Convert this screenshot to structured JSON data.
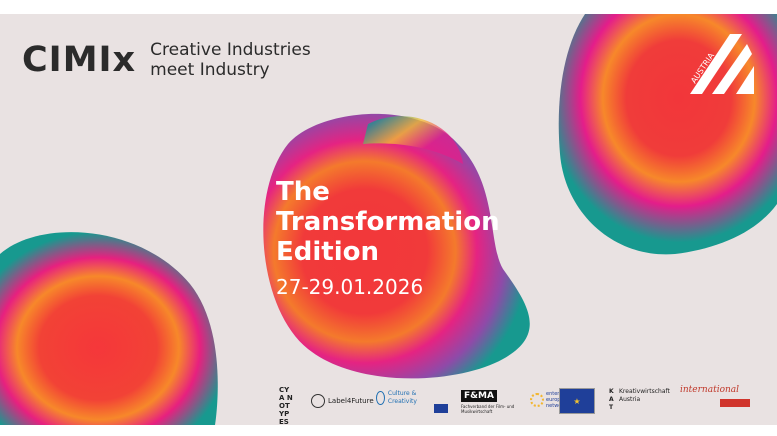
{
  "brand": {
    "mark": "CIMIx",
    "tagline_line1": "Creative Industries",
    "tagline_line2": "meet Industry"
  },
  "headline": {
    "line1": "The",
    "line2": "Transformation",
    "line3": "Edition"
  },
  "date": "27-29.01.2026",
  "austria_badge": {
    "text": "AUSTRIA",
    "icon": "austria-a-logo-icon"
  },
  "partner_logos": {
    "cyanotypes": "CYA NOT YPES",
    "label4future": "Label4Future",
    "culture_creativity": "Culture & Creativity",
    "fama": "F&MA",
    "fama_sub": "Fachverband der Film- und Musikwirtschaft",
    "enterprise": "enterprise europe network",
    "kat_name": "Kreativwirtschaft",
    "kat_sub": "Austria",
    "international": "international"
  },
  "colors": {
    "background": "#e9e2e2",
    "teal": "#17998f",
    "magenta": "#e41d8a",
    "red": "#f0373a",
    "orange": "#f7882a",
    "yellow": "#f6c22d",
    "text_dark": "#2b2b2b"
  }
}
